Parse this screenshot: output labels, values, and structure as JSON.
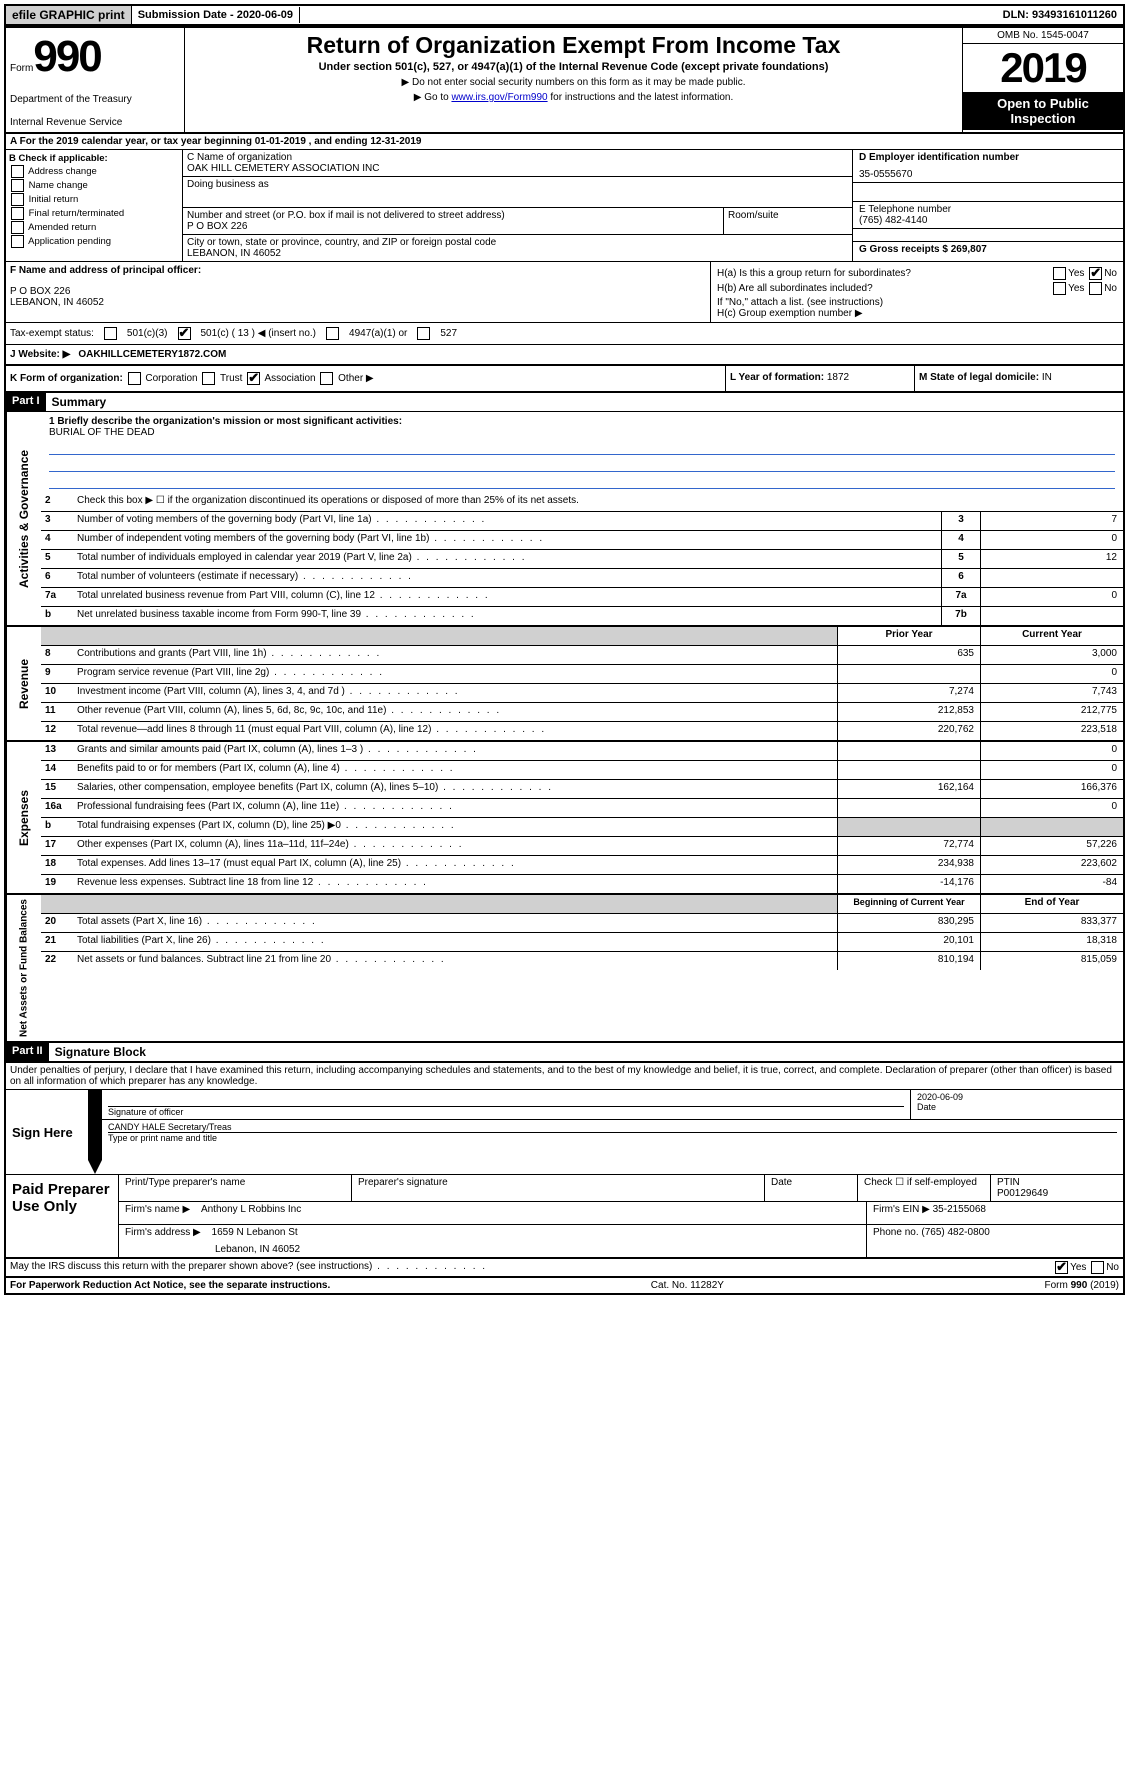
{
  "topbar": {
    "efile": "efile GRAPHIC print",
    "submission_date_label": "Submission Date - 2020-06-09",
    "dln": "DLN: 93493161011260"
  },
  "header": {
    "form_label": "Form",
    "form_number": "990",
    "dept": "Department of the Treasury",
    "irs": "Internal Revenue Service",
    "title": "Return of Organization Exempt From Income Tax",
    "subtitle": "Under section 501(c), 527, or 4947(a)(1) of the Internal Revenue Code (except private foundations)",
    "instr1": "▶ Do not enter social security numbers on this form as it may be made public.",
    "instr2_pre": "▶ Go to ",
    "instr2_link": "www.irs.gov/Form990",
    "instr2_post": " for instructions and the latest information.",
    "omb": "OMB No. 1545-0047",
    "year": "2019",
    "open_public": "Open to Public Inspection"
  },
  "row_a": "A For the 2019 calendar year, or tax year beginning 01-01-2019    , and ending 12-31-2019",
  "section_b": {
    "label": "B Check if applicable:",
    "opts": [
      "Address change",
      "Name change",
      "Initial return",
      "Final return/terminated",
      "Amended return",
      "Application pending"
    ]
  },
  "section_c": {
    "name_label": "C Name of organization",
    "name": "OAK HILL CEMETERY ASSOCIATION INC",
    "dba_label": "Doing business as",
    "addr_label": "Number and street (or P.O. box if mail is not delivered to street address)",
    "room_label": "Room/suite",
    "addr": "P O BOX 226",
    "city_label": "City or town, state or province, country, and ZIP or foreign postal code",
    "city": "LEBANON, IN  46052"
  },
  "section_d_g": {
    "d_label": "D Employer identification number",
    "d_val": "35-0555670",
    "e_label": "E Telephone number",
    "e_val": "(765) 482-4140",
    "g_label": "G Gross receipts $ ",
    "g_val": "269,807"
  },
  "section_f": {
    "label": "F  Name and address of principal officer:",
    "line1": "P O BOX 226",
    "line2": "LEBANON, IN  46052"
  },
  "section_h": {
    "a_label": "H(a)  Is this a group return for subordinates?",
    "b_label": "H(b)  Are all subordinates included?",
    "note": "If \"No,\" attach a list. (see instructions)",
    "c_label": "H(c)  Group exemption number ▶"
  },
  "tax_exempt": {
    "label": "Tax-exempt status:",
    "opt1": "501(c)(3)",
    "opt2": "501(c) ( 13 ) ◀ (insert no.)",
    "opt3": "4947(a)(1) or",
    "opt4": "527"
  },
  "website": {
    "label": "J   Website: ▶",
    "val": "OAKHILLCEMETERY1872.COM"
  },
  "kform": {
    "k_label": "K Form of organization:",
    "opts": [
      "Corporation",
      "Trust",
      "Association",
      "Other ▶"
    ],
    "l_label": "L Year of formation: ",
    "l_val": "1872",
    "m_label": "M State of legal domicile: ",
    "m_val": "IN"
  },
  "part1": {
    "header": "Part I",
    "title": "Summary",
    "q1_label": "1  Briefly describe the organization's mission or most significant activities:",
    "q1_val": "BURIAL OF THE DEAD",
    "q2": "Check this box ▶ ☐  if the organization discontinued its operations or disposed of more than 25% of its net assets.",
    "lines_gov": [
      {
        "n": "3",
        "d": "Number of voting members of the governing body (Part VI, line 1a)",
        "c": "3",
        "v": "7"
      },
      {
        "n": "4",
        "d": "Number of independent voting members of the governing body (Part VI, line 1b)",
        "c": "4",
        "v": "0"
      },
      {
        "n": "5",
        "d": "Total number of individuals employed in calendar year 2019 (Part V, line 2a)",
        "c": "5",
        "v": "12"
      },
      {
        "n": "6",
        "d": "Total number of volunteers (estimate if necessary)",
        "c": "6",
        "v": ""
      },
      {
        "n": "7a",
        "d": "Total unrelated business revenue from Part VIII, column (C), line 12",
        "c": "7a",
        "v": "0"
      },
      {
        "n": "b",
        "d": "Net unrelated business taxable income from Form 990-T, line 39",
        "c": "7b",
        "v": ""
      }
    ],
    "col_prior": "Prior Year",
    "col_current": "Current Year",
    "lines_rev": [
      {
        "n": "8",
        "d": "Contributions and grants (Part VIII, line 1h)",
        "p": "635",
        "c": "3,000"
      },
      {
        "n": "9",
        "d": "Program service revenue (Part VIII, line 2g)",
        "p": "",
        "c": "0"
      },
      {
        "n": "10",
        "d": "Investment income (Part VIII, column (A), lines 3, 4, and 7d )",
        "p": "7,274",
        "c": "7,743"
      },
      {
        "n": "11",
        "d": "Other revenue (Part VIII, column (A), lines 5, 6d, 8c, 9c, 10c, and 11e)",
        "p": "212,853",
        "c": "212,775"
      },
      {
        "n": "12",
        "d": "Total revenue—add lines 8 through 11 (must equal Part VIII, column (A), line 12)",
        "p": "220,762",
        "c": "223,518"
      }
    ],
    "lines_exp": [
      {
        "n": "13",
        "d": "Grants and similar amounts paid (Part IX, column (A), lines 1–3 )",
        "p": "",
        "c": "0"
      },
      {
        "n": "14",
        "d": "Benefits paid to or for members (Part IX, column (A), line 4)",
        "p": "",
        "c": "0"
      },
      {
        "n": "15",
        "d": "Salaries, other compensation, employee benefits (Part IX, column (A), lines 5–10)",
        "p": "162,164",
        "c": "166,376"
      },
      {
        "n": "16a",
        "d": "Professional fundraising fees (Part IX, column (A), line 11e)",
        "p": "",
        "c": "0"
      },
      {
        "n": "b",
        "d": "Total fundraising expenses (Part IX, column (D), line 25) ▶0",
        "p": "shaded",
        "c": "shaded"
      },
      {
        "n": "17",
        "d": "Other expenses (Part IX, column (A), lines 11a–11d, 11f–24e)",
        "p": "72,774",
        "c": "57,226"
      },
      {
        "n": "18",
        "d": "Total expenses. Add lines 13–17 (must equal Part IX, column (A), line 25)",
        "p": "234,938",
        "c": "223,602"
      },
      {
        "n": "19",
        "d": "Revenue less expenses. Subtract line 18 from line 12",
        "p": "-14,176",
        "c": "-84"
      }
    ],
    "col_begin": "Beginning of Current Year",
    "col_end": "End of Year",
    "lines_net": [
      {
        "n": "20",
        "d": "Total assets (Part X, line 16)",
        "p": "830,295",
        "c": "833,377"
      },
      {
        "n": "21",
        "d": "Total liabilities (Part X, line 26)",
        "p": "20,101",
        "c": "18,318"
      },
      {
        "n": "22",
        "d": "Net assets or fund balances. Subtract line 21 from line 20",
        "p": "810,194",
        "c": "815,059"
      }
    ],
    "vert_gov": "Activities & Governance",
    "vert_rev": "Revenue",
    "vert_exp": "Expenses",
    "vert_net": "Net Assets or Fund Balances"
  },
  "part2": {
    "header": "Part II",
    "title": "Signature Block",
    "penalties": "Under penalties of perjury, I declare that I have examined this return, including accompanying schedules and statements, and to the best of my knowledge and belief, it is true, correct, and complete. Declaration of preparer (other than officer) is based on all information of which preparer has any knowledge.",
    "sign_here": "Sign Here",
    "sig_officer": "Signature of officer",
    "sig_date": "2020-06-09",
    "date_label": "Date",
    "officer_name": "CANDY HALE  Secretary/Treas",
    "type_name": "Type or print name and title"
  },
  "paid_prep": {
    "label": "Paid Preparer Use Only",
    "print_label": "Print/Type preparer's name",
    "sig_label": "Preparer's signature",
    "date_label": "Date",
    "check_label": "Check ☐ if self-employed",
    "ptin_label": "PTIN",
    "ptin_val": "P00129649",
    "firm_name_label": "Firm's name    ▶",
    "firm_name": "Anthony L Robbins Inc",
    "firm_ein_label": "Firm's EIN ▶",
    "firm_ein": "35-2155068",
    "firm_addr_label": "Firm's address ▶",
    "firm_addr1": "1659 N Lebanon St",
    "firm_addr2": "Lebanon, IN  46052",
    "phone_label": "Phone no. ",
    "phone": "(765) 482-0800"
  },
  "footer": {
    "irs_discuss": "May the IRS discuss this return with the preparer shown above? (see instructions)",
    "paperwork": "For Paperwork Reduction Act Notice, see the separate instructions.",
    "cat": "Cat. No. 11282Y",
    "form": "Form 990 (2019)"
  },
  "yes": "Yes",
  "no": "No"
}
